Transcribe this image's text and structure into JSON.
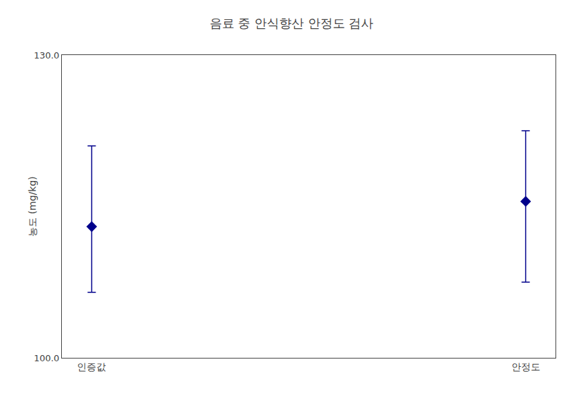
{
  "chart_data": {
    "type": "scatter",
    "title": "음료 중 안식향산 안정도 검사",
    "ylabel": "농도 (mg/kg)",
    "categories": [
      "인증값",
      "안정도"
    ],
    "values": [
      113.0,
      115.5
    ],
    "error_upper": [
      8.0,
      7.0
    ],
    "error_lower": [
      6.5,
      8.0
    ],
    "color": "#00008B",
    "marker": "diamond",
    "ylim": [
      100.0,
      130.0
    ],
    "yticks": [
      {
        "value": 100.0,
        "label": "100.0"
      },
      {
        "value": 130.0,
        "label": "130.0"
      }
    ],
    "grid": false
  }
}
